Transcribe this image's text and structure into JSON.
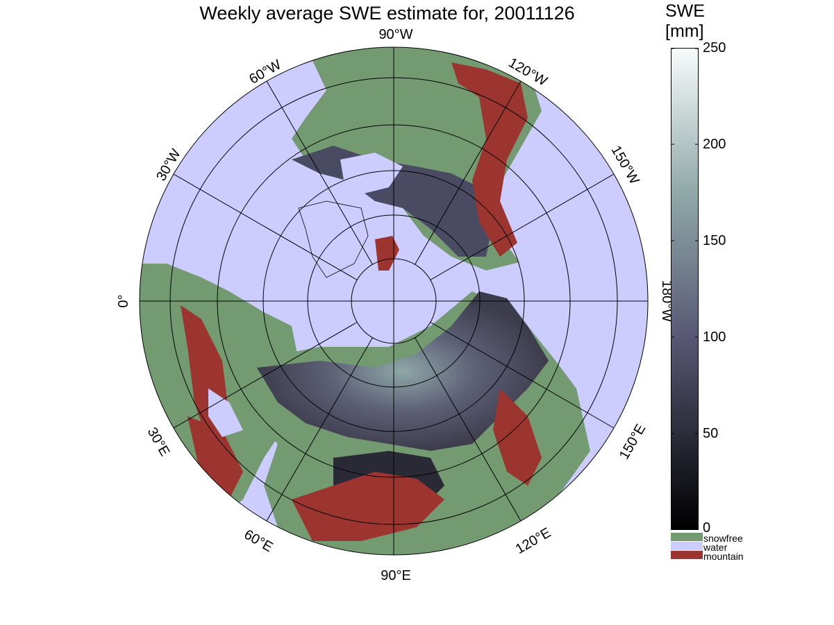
{
  "title": "Weekly average SWE estimate for, 20011126",
  "colorbar": {
    "title_line1": "SWE",
    "title_line2": "[mm]",
    "ticks": [
      "250",
      "200",
      "150",
      "100",
      "50",
      "0"
    ],
    "range_mm": [
      0,
      250
    ],
    "colors": {
      "low": "#000000",
      "mid": "#585874",
      "high": "#f8fbfb"
    }
  },
  "legend": {
    "items": [
      {
        "label": "snowfree",
        "color": "#739a71"
      },
      {
        "label": "water",
        "color": "#ccccff"
      },
      {
        "label": "mountain",
        "color": "#9c3430"
      }
    ]
  },
  "map": {
    "projection": "north polar stereographic",
    "meridian_labels": {
      "m90w": "90°W",
      "m60w": "60°W",
      "m120w": "120°W",
      "m30w": "30°W",
      "m150w": "150°W",
      "m0": "0°",
      "m180w": "180°W",
      "m30e": "30°E",
      "m150e": "150°E",
      "m60e": "60°E",
      "m120e": "120°E",
      "m90e": "90°E"
    },
    "colors": {
      "water": "#ccccff",
      "land": "#739a71",
      "mountain": "#9c3430",
      "snow": "#3d3c4c"
    }
  }
}
